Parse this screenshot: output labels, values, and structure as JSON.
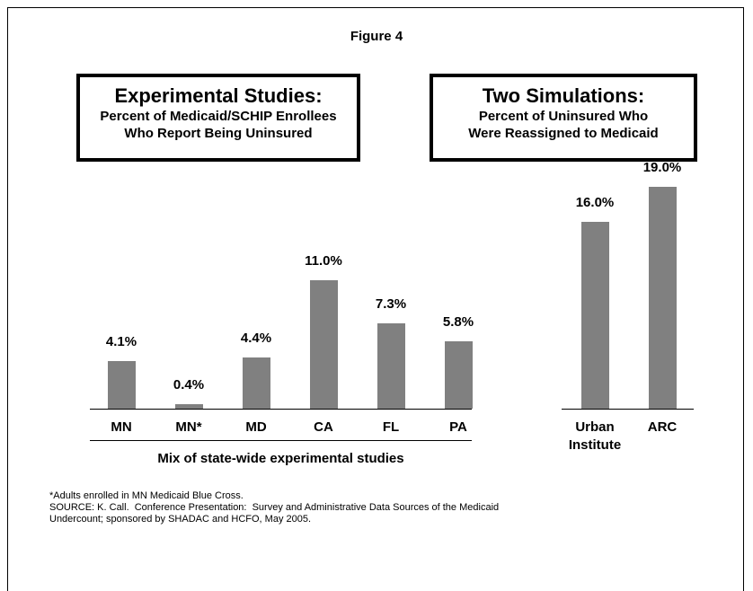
{
  "chart_data": {
    "type": "bar",
    "title": "Figure 4",
    "panels": [
      {
        "title": "Experimental Studies:",
        "subtitle_lines": [
          "Percent of Medicaid/SCHIP Enrollees",
          "Who Report Being Uninsured"
        ]
      },
      {
        "title": "Two Simulations:",
        "subtitle_lines": [
          "Percent of Uninsured Who",
          "Were Reassigned to Medicaid"
        ]
      }
    ],
    "categories": [
      "MN",
      "MN*",
      "MD",
      "CA",
      "FL",
      "PA",
      "Urban Institute",
      "ARC"
    ],
    "values": [
      4.1,
      0.4,
      4.4,
      11.0,
      7.3,
      5.8,
      16.0,
      19.0
    ],
    "value_labels": [
      "4.1%",
      "0.4%",
      "4.4%",
      "11.0%",
      "7.3%",
      "5.8%",
      "16.0%",
      "19.0%"
    ],
    "color": "#808080",
    "group_label": "Mix of state-wide experimental studies",
    "footnotes": [
      "*Adults enrolled in MN Medicaid Blue Cross.",
      "SOURCE: K. Call.  Conference Presentation:  Survey and Administrative Data Sources of the Medicaid",
      "Undercount; sponsored by SHADAC and HCFO, May 2005."
    ]
  }
}
